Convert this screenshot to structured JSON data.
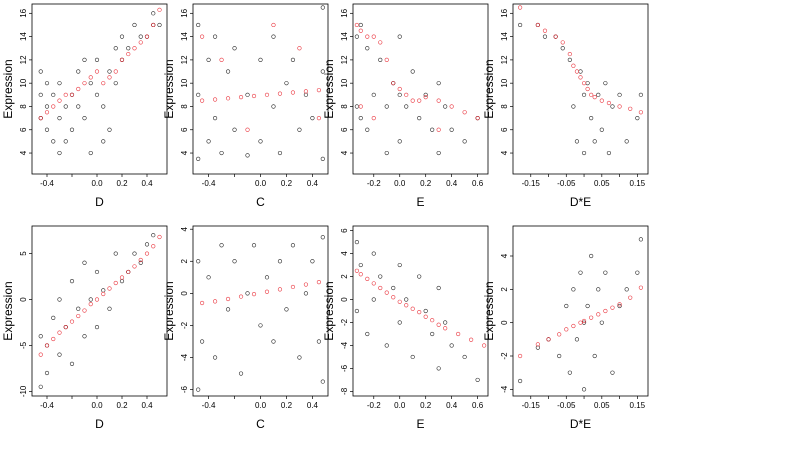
{
  "chart_data": [
    {
      "type": "scatter",
      "xlabel": "D",
      "ylabel": "Expression",
      "xlim": [
        -0.52,
        0.56
      ],
      "ylim": [
        2.2,
        16.8
      ],
      "xticks": [
        -0.4,
        -0.2,
        0.0,
        0.2,
        0.4
      ],
      "xtick_labels": [
        "-0.4",
        "",
        "0.0",
        "0.2",
        "0.4"
      ],
      "yticks": [
        4,
        6,
        8,
        10,
        12,
        14,
        16
      ],
      "ytick_labels": [
        "4",
        "6",
        "8",
        "10",
        "12",
        "14",
        "16"
      ],
      "series": [
        {
          "color": "#000000",
          "x": [
            -0.45,
            -0.45,
            -0.45,
            -0.4,
            -0.4,
            -0.4,
            -0.35,
            -0.35,
            -0.3,
            -0.3,
            -0.3,
            -0.25,
            -0.25,
            -0.2,
            -0.2,
            -0.15,
            -0.15,
            -0.1,
            -0.1,
            -0.05,
            -0.05,
            0.0,
            0.0,
            0.05,
            0.05,
            0.1,
            0.1,
            0.15,
            0.15,
            0.2,
            0.2,
            0.25,
            0.3,
            0.35,
            0.4,
            0.45,
            0.45,
            0.5
          ],
          "y": [
            7,
            9,
            11,
            6,
            8,
            10,
            5,
            9,
            7,
            4,
            10,
            8,
            5,
            9,
            6,
            11,
            8,
            12,
            7,
            4,
            10,
            12,
            9,
            8,
            5,
            11,
            6,
            13,
            10,
            12,
            14,
            13,
            15,
            14,
            14,
            15,
            16,
            15
          ]
        },
        {
          "color": "#e8202a",
          "x": [
            -0.45,
            -0.4,
            -0.35,
            -0.3,
            -0.25,
            -0.2,
            -0.15,
            -0.1,
            -0.05,
            0.0,
            0.05,
            0.1,
            0.15,
            0.2,
            0.25,
            0.3,
            0.35,
            0.4,
            0.45,
            0.5
          ],
          "y": [
            7,
            7.5,
            8,
            8.5,
            9,
            9,
            9.5,
            10,
            10.5,
            11,
            10,
            10.5,
            11,
            12,
            12.5,
            13,
            13.5,
            14,
            15,
            16.3
          ]
        }
      ]
    },
    {
      "type": "scatter",
      "xlabel": "C",
      "ylabel": "Expression",
      "xlim": [
        -0.52,
        0.52
      ],
      "ylim": [
        2.2,
        16.8
      ],
      "xticks": [
        -0.4,
        -0.2,
        0.0,
        0.2,
        0.4
      ],
      "xtick_labels": [
        "-0.4",
        "",
        "0.0",
        "0.2",
        "0.4"
      ],
      "yticks": [
        4,
        6,
        8,
        10,
        12,
        14,
        16
      ],
      "ytick_labels": [
        "4",
        "6",
        "8",
        "10",
        "12",
        "14",
        "16"
      ],
      "series": [
        {
          "color": "#000000",
          "x": [
            -0.48,
            -0.48,
            -0.48,
            -0.4,
            -0.4,
            -0.35,
            -0.35,
            -0.3,
            -0.25,
            -0.2,
            -0.2,
            -0.1,
            -0.1,
            0.0,
            0.0,
            0.1,
            0.1,
            0.15,
            0.2,
            0.25,
            0.3,
            0.35,
            0.4,
            0.48,
            0.48,
            0.48
          ],
          "y": [
            3.5,
            9,
            15,
            5,
            12,
            7,
            14,
            4,
            11,
            6,
            13,
            3.8,
            9,
            5,
            12,
            8,
            14,
            4,
            10,
            12,
            6,
            9,
            7,
            3.5,
            11,
            16.5
          ]
        },
        {
          "color": "#e8202a",
          "x": [
            -0.45,
            -0.35,
            -0.25,
            -0.15,
            -0.05,
            0.05,
            0.15,
            0.25,
            0.35,
            0.45,
            -0.45,
            -0.3,
            -0.1,
            0.1,
            0.3,
            0.45
          ],
          "y": [
            8.5,
            8.6,
            8.7,
            8.8,
            8.9,
            9.0,
            9.1,
            9.2,
            9.3,
            9.4,
            14,
            12,
            6,
            15,
            13,
            7
          ]
        }
      ]
    },
    {
      "type": "scatter",
      "xlabel": "E",
      "ylabel": "Expression",
      "xlim": [
        -0.36,
        0.68
      ],
      "ylim": [
        2.2,
        16.8
      ],
      "xticks": [
        -0.2,
        0.0,
        0.2,
        0.4,
        0.6
      ],
      "xtick_labels": [
        "-0.2",
        "0.0",
        "0.2",
        "0.4",
        "0.6"
      ],
      "yticks": [
        4,
        6,
        8,
        10,
        12,
        14,
        16
      ],
      "ytick_labels": [
        "4",
        "6",
        "8",
        "10",
        "12",
        "14",
        "16"
      ],
      "series": [
        {
          "color": "#000000",
          "x": [
            -0.33,
            -0.33,
            -0.3,
            -0.3,
            -0.25,
            -0.25,
            -0.2,
            -0.15,
            -0.1,
            -0.1,
            -0.05,
            0.0,
            0.0,
            0.0,
            0.05,
            0.1,
            0.15,
            0.2,
            0.25,
            0.3,
            0.3,
            0.35,
            0.4,
            0.5,
            0.6
          ],
          "y": [
            14,
            8,
            15,
            7,
            13,
            6,
            9,
            12,
            8,
            4,
            10,
            14,
            9,
            5,
            8,
            11,
            7,
            9,
            6,
            10,
            4,
            8,
            6,
            5,
            7
          ]
        },
        {
          "color": "#e8202a",
          "x": [
            -0.33,
            -0.3,
            -0.25,
            -0.2,
            -0.15,
            -0.1,
            -0.05,
            0.0,
            0.05,
            0.1,
            0.15,
            0.2,
            0.3,
            0.4,
            0.5,
            0.6,
            -0.3,
            -0.2,
            0.3
          ],
          "y": [
            15,
            14.5,
            14,
            14,
            13.5,
            12,
            10,
            9.5,
            9,
            8.5,
            8.5,
            8.8,
            8.5,
            8,
            7.5,
            7,
            8,
            7,
            6
          ]
        }
      ]
    },
    {
      "type": "scatter",
      "xlabel": "D*E",
      "ylabel": "Expression",
      "xlim": [
        -0.2,
        0.18
      ],
      "ylim": [
        2.2,
        16.8
      ],
      "xticks": [
        -0.15,
        -0.1,
        -0.05,
        0.0,
        0.05,
        0.1,
        0.15
      ],
      "xtick_labels": [
        "-0.15",
        "",
        "-0.05",
        "",
        "0.05",
        "",
        "0.15"
      ],
      "yticks": [
        4,
        6,
        8,
        10,
        12,
        14,
        16
      ],
      "ytick_labels": [
        "4",
        "6",
        "8",
        "10",
        "12",
        "14",
        "16"
      ],
      "series": [
        {
          "color": "#000000",
          "x": [
            -0.18,
            -0.13,
            -0.11,
            -0.08,
            -0.06,
            -0.04,
            -0.03,
            -0.02,
            -0.01,
            0.0,
            0.0,
            0.01,
            0.02,
            0.03,
            0.04,
            0.05,
            0.06,
            0.07,
            0.08,
            0.1,
            0.12,
            0.15,
            0.16
          ],
          "y": [
            15,
            15,
            14,
            14,
            13,
            12,
            8,
            5,
            11,
            9,
            4,
            10,
            7,
            5,
            9,
            6,
            10,
            4,
            8,
            9,
            5,
            7,
            9
          ]
        },
        {
          "color": "#e8202a",
          "x": [
            -0.18,
            -0.13,
            -0.11,
            -0.08,
            -0.06,
            -0.04,
            -0.03,
            -0.02,
            -0.01,
            0.0,
            0.01,
            0.02,
            0.03,
            0.05,
            0.07,
            0.1,
            0.13,
            0.16
          ],
          "y": [
            16.5,
            15,
            14.5,
            14,
            13.5,
            12.5,
            11.5,
            11,
            10.5,
            10,
            9.5,
            9,
            8.8,
            8.5,
            8.3,
            8,
            7.8,
            7.5
          ]
        }
      ]
    },
    {
      "type": "scatter",
      "xlabel": "D",
      "ylabel": "Expression",
      "xlim": [
        -0.52,
        0.56
      ],
      "ylim": [
        -10.5,
        8.0
      ],
      "xticks": [
        -0.4,
        -0.2,
        0.0,
        0.2,
        0.4
      ],
      "xtick_labels": [
        "-0.4",
        "",
        "0.0",
        "0.2",
        "0.4"
      ],
      "yticks": [
        -10,
        -5,
        0,
        5
      ],
      "ytick_labels": [
        "-10",
        "-5",
        "0",
        "5"
      ],
      "series": [
        {
          "color": "#000000",
          "x": [
            -0.45,
            -0.45,
            -0.4,
            -0.4,
            -0.35,
            -0.3,
            -0.3,
            -0.25,
            -0.2,
            -0.2,
            -0.15,
            -0.1,
            -0.1,
            -0.05,
            0.0,
            0.0,
            0.05,
            0.1,
            0.15,
            0.2,
            0.25,
            0.3,
            0.35,
            0.4,
            0.45
          ],
          "y": [
            -9.5,
            -4,
            -8,
            -5,
            -2,
            -6,
            0,
            -3,
            -7,
            2,
            -1,
            -4,
            4,
            0,
            -3,
            3,
            1,
            -1,
            5,
            2,
            3,
            5,
            4,
            6,
            7
          ]
        },
        {
          "color": "#e8202a",
          "x": [
            -0.45,
            -0.4,
            -0.35,
            -0.3,
            -0.25,
            -0.2,
            -0.15,
            -0.1,
            -0.05,
            0.0,
            0.05,
            0.1,
            0.15,
            0.2,
            0.25,
            0.3,
            0.35,
            0.4,
            0.45,
            0.5
          ],
          "y": [
            -6,
            -5,
            -4.3,
            -3.6,
            -3,
            -2.4,
            -1.8,
            -1.2,
            -0.5,
            0,
            0.6,
            1.2,
            1.8,
            2.4,
            3,
            3.6,
            4.3,
            5,
            5.8,
            6.8
          ]
        }
      ]
    },
    {
      "type": "scatter",
      "xlabel": "C",
      "ylabel": "Expression",
      "xlim": [
        -0.52,
        0.52
      ],
      "ylim": [
        -6.4,
        4.2
      ],
      "xticks": [
        -0.4,
        -0.2,
        0.0,
        0.2,
        0.4
      ],
      "xtick_labels": [
        "-0.4",
        "",
        "0.0",
        "0.2",
        "0.4"
      ],
      "yticks": [
        -6,
        -4,
        -2,
        0,
        2,
        4
      ],
      "ytick_labels": [
        "-6",
        "-4",
        "-2",
        "0",
        "2",
        "4"
      ],
      "series": [
        {
          "color": "#000000",
          "x": [
            -0.48,
            -0.48,
            -0.45,
            -0.4,
            -0.35,
            -0.3,
            -0.25,
            -0.2,
            -0.15,
            -0.1,
            -0.05,
            0.0,
            0.05,
            0.1,
            0.15,
            0.2,
            0.25,
            0.3,
            0.35,
            0.4,
            0.45,
            0.48,
            0.48
          ],
          "y": [
            -6,
            2,
            -3,
            1,
            -4,
            3,
            -1,
            2,
            -5,
            0,
            3,
            -2,
            1,
            -3,
            2,
            -1,
            3,
            -4,
            0,
            2,
            -3,
            3.5,
            -5.5
          ]
        },
        {
          "color": "#e8202a",
          "x": [
            -0.45,
            -0.35,
            -0.25,
            -0.15,
            -0.05,
            0.05,
            0.15,
            0.25,
            0.35,
            0.45
          ],
          "y": [
            -0.6,
            -0.5,
            -0.35,
            -0.2,
            -0.05,
            0.1,
            0.25,
            0.4,
            0.55,
            0.7
          ]
        }
      ]
    },
    {
      "type": "scatter",
      "xlabel": "E",
      "ylabel": "Expression",
      "xlim": [
        -0.36,
        0.68
      ],
      "ylim": [
        -8.4,
        6.4
      ],
      "xticks": [
        -0.2,
        0.0,
        0.2,
        0.4,
        0.6
      ],
      "xtick_labels": [
        "-0.2",
        "0.0",
        "0.2",
        "0.4",
        "0.6"
      ],
      "yticks": [
        -8,
        -6,
        -4,
        -2,
        0,
        2,
        4,
        6
      ],
      "ytick_labels": [
        "-8",
        "-6",
        "-4",
        "-2",
        "0",
        "2",
        "4",
        "6"
      ],
      "series": [
        {
          "color": "#000000",
          "x": [
            -0.33,
            -0.33,
            -0.3,
            -0.25,
            -0.2,
            -0.2,
            -0.15,
            -0.1,
            -0.05,
            0.0,
            0.0,
            0.05,
            0.1,
            0.15,
            0.2,
            0.25,
            0.3,
            0.3,
            0.35,
            0.4,
            0.5,
            0.6
          ],
          "y": [
            5,
            -1,
            3,
            -3,
            4,
            0,
            2,
            -4,
            1,
            3,
            -2,
            0,
            -5,
            2,
            -1,
            -3,
            1,
            -6,
            -2,
            -4,
            -5,
            -7
          ]
        },
        {
          "color": "#e8202a",
          "x": [
            -0.33,
            -0.3,
            -0.25,
            -0.2,
            -0.15,
            -0.1,
            -0.05,
            0.0,
            0.05,
            0.1,
            0.15,
            0.2,
            0.25,
            0.3,
            0.35,
            0.45,
            0.55,
            0.65
          ],
          "y": [
            2.5,
            2.2,
            1.8,
            1.4,
            1.0,
            0.6,
            0.2,
            -0.2,
            -0.5,
            -0.8,
            -1.1,
            -1.5,
            -1.8,
            -2.2,
            -2.5,
            -3,
            -3.5,
            -4
          ]
        }
      ]
    },
    {
      "type": "scatter",
      "xlabel": "D*E",
      "ylabel": "Expression",
      "xlim": [
        -0.2,
        0.18
      ],
      "ylim": [
        -4.4,
        5.8
      ],
      "xticks": [
        -0.15,
        -0.1,
        -0.05,
        0.0,
        0.05,
        0.1,
        0.15
      ],
      "xtick_labels": [
        "-0.15",
        "",
        "-0.05",
        "",
        "0.05",
        "",
        "0.15"
      ],
      "yticks": [
        -4,
        -2,
        0,
        2,
        4
      ],
      "ytick_labels": [
        "-4",
        "-2",
        "0",
        "2",
        "4"
      ],
      "series": [
        {
          "color": "#000000",
          "x": [
            -0.18,
            -0.13,
            -0.1,
            -0.07,
            -0.05,
            -0.04,
            -0.03,
            -0.02,
            -0.01,
            0.0,
            0.0,
            0.01,
            0.02,
            0.03,
            0.04,
            0.05,
            0.06,
            0.08,
            0.1,
            0.12,
            0.15,
            0.16
          ],
          "y": [
            -3.5,
            -1.5,
            -1,
            -2,
            1,
            -3,
            2,
            -1,
            3,
            0,
            -4,
            1,
            4,
            -2,
            2,
            0,
            3,
            -3,
            1,
            2,
            3,
            5
          ]
        },
        {
          "color": "#e8202a",
          "x": [
            -0.18,
            -0.13,
            -0.1,
            -0.07,
            -0.05,
            -0.03,
            -0.01,
            0.0,
            0.02,
            0.04,
            0.06,
            0.08,
            0.1,
            0.13,
            0.16
          ],
          "y": [
            -2,
            -1.3,
            -1,
            -0.7,
            -0.4,
            -0.2,
            0,
            0.1,
            0.3,
            0.5,
            0.7,
            0.9,
            1.1,
            1.5,
            2.1
          ]
        }
      ]
    }
  ]
}
